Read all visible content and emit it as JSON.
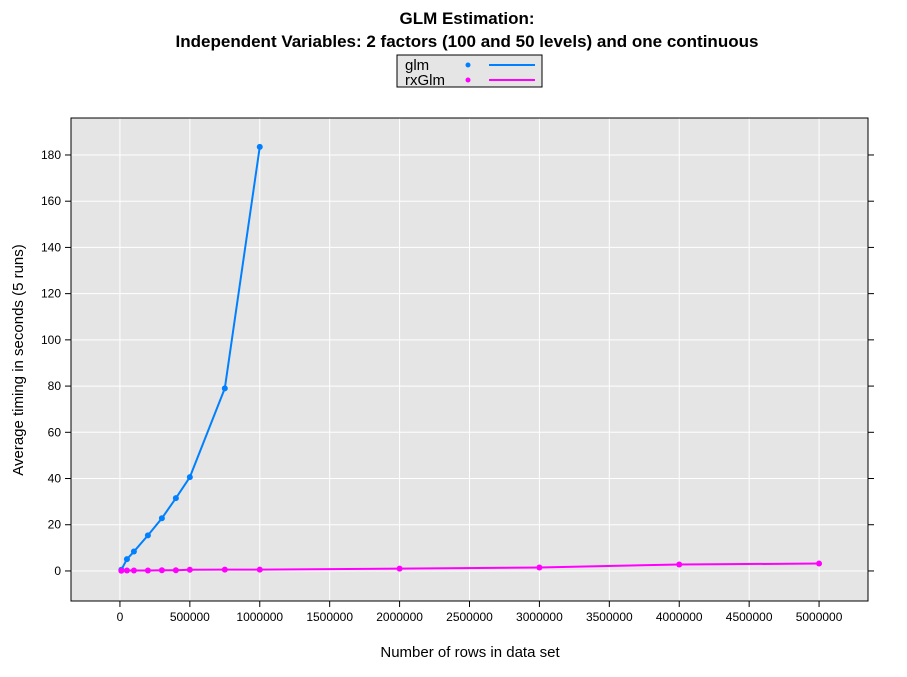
{
  "chart_data": {
    "type": "line",
    "title": "GLM Estimation:",
    "subtitle": "Independent Variables: 2 factors (100 and 50 levels) and one continuous",
    "xlabel": "Number of rows in data set",
    "ylabel": "Average timing in seconds (5 runs)",
    "xlim": [
      -350000,
      5350000
    ],
    "ylim": [
      -13,
      196
    ],
    "xticks": [
      0,
      500000,
      1000000,
      1500000,
      2000000,
      2500000,
      3000000,
      3500000,
      4000000,
      4500000,
      5000000
    ],
    "yticks": [
      0,
      20,
      40,
      60,
      80,
      100,
      120,
      140,
      160,
      180
    ],
    "grid": true,
    "legend_position": "top",
    "background": "#e5e5e5",
    "series": [
      {
        "name": "glm",
        "color": "#0080ff",
        "x": [
          10000,
          50000,
          100000,
          200000,
          300000,
          400000,
          500000,
          750000,
          1000000
        ],
        "y": [
          0.5,
          5.1,
          8.4,
          15.4,
          22.8,
          31.5,
          40.6,
          79,
          183.5
        ]
      },
      {
        "name": "rxGlm",
        "color": "#ff00ff",
        "x": [
          10000,
          50000,
          100000,
          200000,
          300000,
          400000,
          500000,
          750000,
          1000000,
          2000000,
          3000000,
          4000000,
          5000000
        ],
        "y": [
          0.1,
          0.2,
          0.2,
          0.2,
          0.3,
          0.3,
          0.5,
          0.6,
          0.6,
          1.0,
          1.5,
          2.8,
          3.2
        ]
      }
    ]
  }
}
